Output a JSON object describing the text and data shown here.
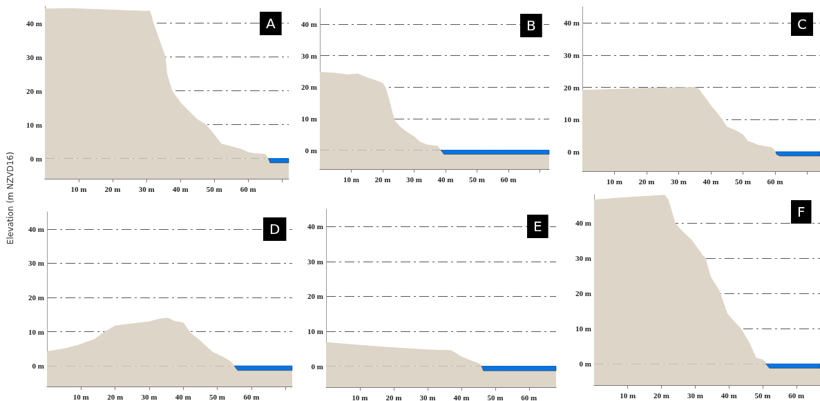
{
  "chart_data": [
    {
      "type": "area",
      "title": "A",
      "ylabel": "Elevation (m NZVD16)",
      "xlim": [
        0,
        72
      ],
      "ylim": [
        -6,
        45
      ],
      "grid": "y",
      "xticks": [
        {
          "value": 10,
          "label": "10 m"
        },
        {
          "value": 20,
          "label": "20 m"
        },
        {
          "value": 30,
          "label": "30 m"
        },
        {
          "value": 40,
          "label": "40 m"
        },
        {
          "value": 50,
          "label": "50 m"
        },
        {
          "value": 60,
          "label": "60 m"
        },
        {
          "value": 70,
          "label": null
        }
      ],
      "yticks": [
        {
          "value": 0,
          "label": "0 m"
        },
        {
          "value": 10,
          "label": "10 m"
        },
        {
          "value": 20,
          "label": "20 m"
        },
        {
          "value": 30,
          "label": "30 m"
        },
        {
          "value": 40,
          "label": "40 m"
        }
      ],
      "bands": [
        {
          "axis": "y",
          "from": -6,
          "to": 0,
          "color": "#ddd5c7"
        }
      ],
      "series": [
        {
          "color": "#ddd5c7",
          "x": [
            0,
            8,
            30,
            31,
            32,
            35.5,
            36,
            37.5,
            40,
            42,
            45,
            47.5,
            50,
            52,
            55,
            58,
            60,
            62,
            65,
            66,
            66.5,
            72
          ],
          "values": [
            44.2,
            44.3,
            43.5,
            43.6,
            40,
            30,
            25,
            20,
            16.5,
            14.5,
            11.5,
            10,
            7,
            4.3,
            3.5,
            2.7,
            1.8,
            1.4,
            1.3,
            0,
            -1.3,
            -1.3
          ]
        },
        {
          "type": "line",
          "color": "#0a74e0",
          "x": [
            66,
            66.5,
            72
          ],
          "values": [
            0,
            0,
            0
          ],
          "upper": [
            0,
            0,
            0
          ],
          "lower": [
            0,
            -1.3,
            -1.3
          ]
        }
      ]
    },
    {
      "type": "area",
      "title": "B",
      "xlim": [
        0,
        73
      ],
      "ylim": [
        -6,
        45
      ],
      "grid": "y",
      "xticks": [
        {
          "value": 10,
          "label": "10 m"
        },
        {
          "value": 20,
          "label": "20 m"
        },
        {
          "value": 30,
          "label": "30 m"
        },
        {
          "value": 40,
          "label": "40 m"
        },
        {
          "value": 50,
          "label": "50 m"
        },
        {
          "value": 60,
          "label": "60 m"
        },
        {
          "value": 70,
          "label": null
        }
      ],
      "yticks": [
        {
          "value": 0,
          "label": "0 m"
        },
        {
          "value": 10,
          "label": "10 m"
        },
        {
          "value": 20,
          "label": "20 m"
        },
        {
          "value": 30,
          "label": "30 m"
        },
        {
          "value": 40,
          "label": "40 m"
        }
      ],
      "bands": [
        {
          "axis": "y",
          "from": -6,
          "to": 0,
          "color": "#ddd5c7"
        }
      ],
      "series": [
        {
          "color": "#ddd5c7",
          "x": [
            0,
            5,
            9,
            12,
            15,
            18,
            20,
            21,
            22,
            23,
            24,
            26,
            28,
            30,
            32,
            34,
            37.5,
            38.5,
            39.5,
            73
          ],
          "values": [
            24.7,
            24.4,
            23.9,
            24.2,
            23,
            22,
            21.2,
            19.5,
            16,
            12,
            9,
            7,
            5.5,
            4.3,
            2.5,
            1.7,
            1.2,
            0,
            -1.3,
            -1.3
          ]
        },
        {
          "type": "line",
          "color": "#0a74e0",
          "x": [
            38.5,
            39.5,
            73
          ],
          "values": [
            0,
            0,
            0
          ],
          "upper": [
            0,
            0,
            0
          ],
          "lower": [
            0,
            -1.3,
            -1.3
          ]
        }
      ]
    },
    {
      "type": "area",
      "title": "C",
      "xlim": [
        0,
        74
      ],
      "ylim": [
        -6,
        45
      ],
      "grid": "y",
      "xticks": [
        {
          "value": 10,
          "label": "10 m"
        },
        {
          "value": 20,
          "label": "20 m"
        },
        {
          "value": 30,
          "label": "30 m"
        },
        {
          "value": 40,
          "label": "40 m"
        },
        {
          "value": 50,
          "label": "50 m"
        },
        {
          "value": 60,
          "label": "60 m"
        },
        {
          "value": 70,
          "label": null
        }
      ],
      "yticks": [
        {
          "value": 0,
          "label": "0 m"
        },
        {
          "value": 10,
          "label": "10 m"
        },
        {
          "value": 20,
          "label": "20 m"
        },
        {
          "value": 30,
          "label": "30 m"
        },
        {
          "value": 40,
          "label": "40 m"
        }
      ],
      "bands": [
        {
          "axis": "y",
          "from": -6,
          "to": 0,
          "color": "#ddd5c7"
        }
      ],
      "series": [
        {
          "color": "#ddd5c7",
          "x": [
            0,
            10,
            20,
            35,
            36,
            40,
            43,
            45,
            48,
            50,
            51.5,
            55,
            59,
            60,
            60.5,
            61.5,
            74
          ],
          "values": [
            19.1,
            19.4,
            19.8,
            20,
            19.8,
            14.4,
            10.7,
            7.7,
            6.5,
            5.3,
            3.3,
            2,
            1.3,
            0.3,
            -0.8,
            -1.3,
            -1.3
          ]
        },
        {
          "type": "line",
          "color": "#0a74e0",
          "x": [
            60.2,
            60.5,
            61.5,
            74
          ],
          "values": [
            0,
            0,
            0,
            0
          ],
          "upper": [
            0,
            0,
            0,
            0
          ],
          "lower": [
            0,
            -0.8,
            -1.3,
            -1.3
          ]
        }
      ]
    },
    {
      "type": "area",
      "title": "D",
      "xlim": [
        0,
        72
      ],
      "ylim": [
        -6,
        45
      ],
      "grid": "y",
      "xticks": [
        {
          "value": 10,
          "label": "10 m"
        },
        {
          "value": 20,
          "label": "20 m"
        },
        {
          "value": 30,
          "label": "30 m"
        },
        {
          "value": 40,
          "label": "40 m"
        },
        {
          "value": 50,
          "label": "50 m"
        },
        {
          "value": 60,
          "label": "60 m"
        },
        {
          "value": 70,
          "label": null
        }
      ],
      "yticks": [
        {
          "value": 0,
          "label": "0 m"
        },
        {
          "value": 10,
          "label": "10 m"
        },
        {
          "value": 20,
          "label": "20 m"
        },
        {
          "value": 30,
          "label": "30 m"
        },
        {
          "value": 40,
          "label": "40 m"
        }
      ],
      "bands": [
        {
          "axis": "y",
          "from": -6,
          "to": 0,
          "color": "#ddd5c7"
        }
      ],
      "series": [
        {
          "color": "#ddd5c7",
          "x": [
            0,
            5,
            9,
            14,
            17,
            20,
            23,
            30,
            33,
            35.5,
            37.5,
            40,
            42,
            45,
            48.5,
            52,
            54,
            55,
            56,
            72
          ],
          "values": [
            4.2,
            5,
            6,
            7.8,
            10,
            11.7,
            12.1,
            12.9,
            13.7,
            14,
            13,
            12.6,
            9.7,
            7.3,
            4.1,
            2.4,
            1.2,
            0,
            -1.3,
            -1.3
          ]
        },
        {
          "type": "line",
          "color": "#0a74e0",
          "x": [
            55,
            56,
            72
          ],
          "values": [
            0,
            0,
            0
          ],
          "upper": [
            0,
            0,
            0
          ],
          "lower": [
            0,
            -1.3,
            -1.3
          ]
        }
      ]
    },
    {
      "type": "area",
      "title": "E",
      "xlim": [
        0,
        68
      ],
      "ylim": [
        -6,
        45
      ],
      "grid": "y",
      "xticks": [
        {
          "value": 10,
          "label": "10 m"
        },
        {
          "value": 20,
          "label": "20 m"
        },
        {
          "value": 30,
          "label": "30 m"
        },
        {
          "value": 40,
          "label": "40 m"
        },
        {
          "value": 50,
          "label": "50 m"
        },
        {
          "value": 60,
          "label": "60 m"
        }
      ],
      "yticks": [
        {
          "value": 0,
          "label": "0 m"
        },
        {
          "value": 10,
          "label": "10 m"
        },
        {
          "value": 20,
          "label": "20 m"
        },
        {
          "value": 30,
          "label": "30 m"
        },
        {
          "value": 40,
          "label": "40 m"
        }
      ],
      "bands": [
        {
          "axis": "y",
          "from": -6,
          "to": 0,
          "color": "#ddd5c7"
        }
      ],
      "series": [
        {
          "color": "#ddd5c7",
          "x": [
            0,
            10,
            20,
            30,
            37,
            40,
            43,
            45.3,
            46,
            46.5,
            68
          ],
          "values": [
            6.8,
            6,
            5.3,
            4.7,
            4.5,
            2.7,
            1.5,
            0.7,
            0,
            -1.3,
            -1.3
          ]
        },
        {
          "type": "line",
          "color": "#0a74e0",
          "x": [
            46,
            46.5,
            68
          ],
          "values": [
            0,
            0,
            0
          ],
          "upper": [
            0,
            0,
            0
          ],
          "lower": [
            0,
            -1.3,
            -1.3
          ]
        }
      ]
    },
    {
      "type": "area",
      "title": "F",
      "xlim": [
        0,
        67
      ],
      "ylim": [
        -6,
        48
      ],
      "grid": "y",
      "xticks": [
        {
          "value": 10,
          "label": "10 m"
        },
        {
          "value": 20,
          "label": "20 m"
        },
        {
          "value": 30,
          "label": "30 m"
        },
        {
          "value": 40,
          "label": "40 m"
        },
        {
          "value": 50,
          "label": "50 m"
        },
        {
          "value": 60,
          "label": "60 m"
        }
      ],
      "yticks": [
        {
          "value": 0,
          "label": "0 m"
        },
        {
          "value": 10,
          "label": "10 m"
        },
        {
          "value": 20,
          "label": "20 m"
        },
        {
          "value": 30,
          "label": "30 m"
        },
        {
          "value": 40,
          "label": "40 m"
        }
      ],
      "bands": [
        {
          "axis": "y",
          "from": -6,
          "to": 0,
          "color": "#ddd5c7"
        }
      ],
      "series": [
        {
          "color": "#ddd5c7",
          "x": [
            0,
            10,
            20,
            21,
            22,
            24,
            25,
            26.5,
            29,
            32,
            33,
            34.5,
            37,
            39.5,
            43.5,
            46,
            48,
            50,
            51,
            52,
            67
          ],
          "values": [
            46.5,
            47.2,
            47.8,
            47.8,
            46.5,
            40,
            38.8,
            37.3,
            35,
            31,
            30,
            24.7,
            21,
            14.2,
            10,
            6,
            1.7,
            1.2,
            0.3,
            -1.2,
            -1.2
          ]
        },
        {
          "type": "line",
          "color": "#0a74e0",
          "x": [
            51,
            52,
            67
          ],
          "values": [
            0,
            0,
            0
          ],
          "upper": [
            0,
            0,
            0
          ],
          "lower": [
            0,
            -1.2,
            -1.2
          ]
        }
      ]
    }
  ]
}
